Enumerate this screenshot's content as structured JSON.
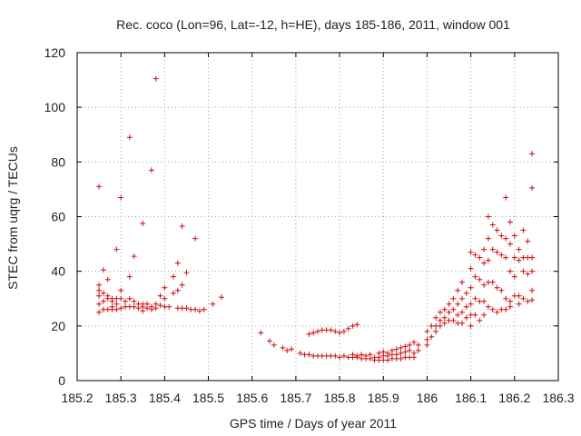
{
  "chart_data": {
    "type": "scatter",
    "title": "Rec. coco (Lon=96, Lat=-12, h=HE), days 185-186, 2011, window 001",
    "xlabel": "GPS time / Days of year 2011",
    "ylabel": "STEC from uqrg / TECUs",
    "xlim": [
      185.2,
      186.3
    ],
    "ylim": [
      0,
      120
    ],
    "xticks": [
      185.2,
      185.3,
      185.4,
      185.5,
      185.6,
      185.7,
      185.8,
      185.9,
      186.0,
      186.1,
      186.2,
      186.3
    ],
    "xtick_labels": [
      "185.2",
      "185.3",
      "185.4",
      "185.5",
      "185.6",
      "185.7",
      "185.8",
      "185.9",
      "186",
      "186.1",
      "186.2",
      "186.3"
    ],
    "yticks": [
      0,
      20,
      40,
      60,
      80,
      100,
      120
    ],
    "ytick_labels": [
      "0",
      "20",
      "40",
      "60",
      "80",
      "100",
      "120"
    ],
    "grid": true,
    "marker": "+",
    "color": "#cc1111",
    "series": [
      {
        "name": "STEC",
        "points": [
          [
            185.25,
            71
          ],
          [
            185.25,
            35
          ],
          [
            185.25,
            33
          ],
          [
            185.25,
            31
          ],
          [
            185.25,
            28
          ],
          [
            185.25,
            25
          ],
          [
            185.26,
            40.5
          ],
          [
            185.26,
            32
          ],
          [
            185.26,
            29
          ],
          [
            185.26,
            26
          ],
          [
            185.27,
            37
          ],
          [
            185.27,
            31
          ],
          [
            185.27,
            30
          ],
          [
            185.27,
            26
          ],
          [
            185.28,
            30
          ],
          [
            185.28,
            29
          ],
          [
            185.28,
            27
          ],
          [
            185.28,
            26
          ],
          [
            185.29,
            48
          ],
          [
            185.29,
            30
          ],
          [
            185.29,
            28
          ],
          [
            185.29,
            26
          ],
          [
            185.3,
            67
          ],
          [
            185.3,
            33
          ],
          [
            185.3,
            30
          ],
          [
            185.3,
            26.5
          ],
          [
            185.31,
            29
          ],
          [
            185.31,
            27
          ],
          [
            185.32,
            89
          ],
          [
            185.32,
            38
          ],
          [
            185.32,
            30
          ],
          [
            185.32,
            27
          ],
          [
            185.33,
            45.5
          ],
          [
            185.33,
            29
          ],
          [
            185.33,
            27
          ],
          [
            185.34,
            28
          ],
          [
            185.34,
            26.5
          ],
          [
            185.35,
            57.5
          ],
          [
            185.35,
            28
          ],
          [
            185.35,
            27
          ],
          [
            185.35,
            25.5
          ],
          [
            185.36,
            28
          ],
          [
            185.36,
            26.5
          ],
          [
            185.37,
            77
          ],
          [
            185.37,
            27
          ],
          [
            185.37,
            26
          ],
          [
            185.38,
            110.5
          ],
          [
            185.38,
            28
          ],
          [
            185.38,
            26.5
          ],
          [
            185.39,
            31
          ],
          [
            185.39,
            27.5
          ],
          [
            185.4,
            34
          ],
          [
            185.4,
            30
          ],
          [
            185.4,
            27
          ],
          [
            185.41,
            27
          ],
          [
            185.42,
            38
          ],
          [
            185.42,
            32
          ],
          [
            185.43,
            43
          ],
          [
            185.43,
            33
          ],
          [
            185.43,
            26.5
          ],
          [
            185.44,
            56.5
          ],
          [
            185.44,
            35
          ],
          [
            185.44,
            26.5
          ],
          [
            185.45,
            39.5
          ],
          [
            185.45,
            26.5
          ],
          [
            185.46,
            26
          ],
          [
            185.47,
            52
          ],
          [
            185.47,
            26
          ],
          [
            185.48,
            25.5
          ],
          [
            185.49,
            26
          ],
          [
            185.51,
            28
          ],
          [
            185.53,
            30.5
          ],
          [
            185.62,
            17.5
          ],
          [
            185.64,
            14.5
          ],
          [
            185.65,
            13
          ],
          [
            185.67,
            12
          ],
          [
            185.68,
            11
          ],
          [
            185.69,
            11.5
          ],
          [
            185.71,
            10
          ],
          [
            185.72,
            9.5
          ],
          [
            185.73,
            17
          ],
          [
            185.73,
            9.5
          ],
          [
            185.74,
            17.5
          ],
          [
            185.74,
            9
          ],
          [
            185.75,
            18
          ],
          [
            185.75,
            9
          ],
          [
            185.76,
            18.5
          ],
          [
            185.76,
            9
          ],
          [
            185.77,
            18.5
          ],
          [
            185.77,
            9
          ],
          [
            185.78,
            18.5
          ],
          [
            185.78,
            9
          ],
          [
            185.79,
            18
          ],
          [
            185.79,
            9
          ],
          [
            185.8,
            17.5
          ],
          [
            185.8,
            8.5
          ],
          [
            185.81,
            18
          ],
          [
            185.81,
            9
          ],
          [
            185.82,
            19
          ],
          [
            185.82,
            8.5
          ],
          [
            185.83,
            20
          ],
          [
            185.83,
            9.5
          ],
          [
            185.83,
            8.5
          ],
          [
            185.84,
            20.5
          ],
          [
            185.84,
            9
          ],
          [
            185.84,
            8.5
          ],
          [
            185.85,
            9.5
          ],
          [
            185.85,
            8
          ],
          [
            185.86,
            9
          ],
          [
            185.86,
            8
          ],
          [
            185.87,
            9.5
          ],
          [
            185.87,
            8
          ],
          [
            185.88,
            8.5
          ],
          [
            185.88,
            7.5
          ],
          [
            185.89,
            10
          ],
          [
            185.89,
            8.5
          ],
          [
            185.89,
            7.5
          ],
          [
            185.9,
            10.5
          ],
          [
            185.9,
            9
          ],
          [
            185.9,
            7.5
          ],
          [
            185.91,
            10
          ],
          [
            185.91,
            9
          ],
          [
            185.91,
            7.5
          ],
          [
            185.92,
            11
          ],
          [
            185.92,
            9.5
          ],
          [
            185.92,
            8
          ],
          [
            185.93,
            11.5
          ],
          [
            185.93,
            9.5
          ],
          [
            185.93,
            8
          ],
          [
            185.94,
            12
          ],
          [
            185.94,
            10
          ],
          [
            185.94,
            8
          ],
          [
            185.95,
            12.5
          ],
          [
            185.95,
            10.5
          ],
          [
            185.95,
            8.5
          ],
          [
            185.96,
            13
          ],
          [
            185.96,
            11
          ],
          [
            185.96,
            8.5
          ],
          [
            185.97,
            14
          ],
          [
            185.97,
            10
          ],
          [
            185.97,
            8.5
          ],
          [
            185.98,
            13
          ],
          [
            185.98,
            11
          ],
          [
            186.0,
            18
          ],
          [
            186.0,
            15
          ],
          [
            186.0,
            13
          ],
          [
            186.01,
            20
          ],
          [
            186.01,
            16
          ],
          [
            186.02,
            23
          ],
          [
            186.02,
            20
          ],
          [
            186.02,
            18
          ],
          [
            186.03,
            25
          ],
          [
            186.03,
            22
          ],
          [
            186.03,
            20
          ],
          [
            186.04,
            26
          ],
          [
            186.04,
            23
          ],
          [
            186.04,
            21
          ],
          [
            186.05,
            28
          ],
          [
            186.05,
            25
          ],
          [
            186.05,
            22
          ],
          [
            186.06,
            30
          ],
          [
            186.06,
            26
          ],
          [
            186.06,
            22
          ],
          [
            186.07,
            33
          ],
          [
            186.07,
            28
          ],
          [
            186.07,
            24
          ],
          [
            186.07,
            21
          ],
          [
            186.08,
            36
          ],
          [
            186.08,
            30
          ],
          [
            186.08,
            25
          ],
          [
            186.08,
            21
          ],
          [
            186.09,
            32
          ],
          [
            186.09,
            27
          ],
          [
            186.09,
            23
          ],
          [
            186.1,
            47
          ],
          [
            186.1,
            41
          ],
          [
            186.1,
            34
          ],
          [
            186.1,
            28
          ],
          [
            186.1,
            24
          ],
          [
            186.1,
            20
          ],
          [
            186.11,
            46
          ],
          [
            186.11,
            38
          ],
          [
            186.11,
            30
          ],
          [
            186.11,
            24
          ],
          [
            186.12,
            45
          ],
          [
            186.12,
            37
          ],
          [
            186.12,
            29
          ],
          [
            186.12,
            22
          ],
          [
            186.13,
            48
          ],
          [
            186.13,
            43
          ],
          [
            186.13,
            35
          ],
          [
            186.13,
            29
          ],
          [
            186.13,
            24
          ],
          [
            186.14,
            60
          ],
          [
            186.14,
            52
          ],
          [
            186.14,
            44
          ],
          [
            186.14,
            36
          ],
          [
            186.14,
            27
          ],
          [
            186.15,
            57
          ],
          [
            186.15,
            48
          ],
          [
            186.15,
            36
          ],
          [
            186.15,
            26
          ],
          [
            186.16,
            55
          ],
          [
            186.16,
            47
          ],
          [
            186.16,
            34
          ],
          [
            186.16,
            25
          ],
          [
            186.17,
            53
          ],
          [
            186.17,
            46
          ],
          [
            186.17,
            33
          ],
          [
            186.17,
            26
          ],
          [
            186.18,
            67
          ],
          [
            186.18,
            52
          ],
          [
            186.18,
            45
          ],
          [
            186.18,
            30
          ],
          [
            186.18,
            26
          ],
          [
            186.19,
            58
          ],
          [
            186.19,
            50
          ],
          [
            186.19,
            40
          ],
          [
            186.19,
            29
          ],
          [
            186.19,
            27
          ],
          [
            186.2,
            53
          ],
          [
            186.2,
            45
          ],
          [
            186.2,
            38
          ],
          [
            186.2,
            31
          ],
          [
            186.21,
            48
          ],
          [
            186.21,
            44
          ],
          [
            186.21,
            31
          ],
          [
            186.21,
            28
          ],
          [
            186.22,
            55
          ],
          [
            186.22,
            45
          ],
          [
            186.22,
            40
          ],
          [
            186.22,
            30
          ],
          [
            186.23,
            51
          ],
          [
            186.23,
            45
          ],
          [
            186.23,
            39
          ],
          [
            186.23,
            29
          ],
          [
            186.24,
            83
          ],
          [
            186.24,
            70.5
          ],
          [
            186.24,
            45
          ],
          [
            186.24,
            40
          ],
          [
            186.24,
            33
          ],
          [
            186.24,
            29.5
          ]
        ]
      }
    ]
  }
}
